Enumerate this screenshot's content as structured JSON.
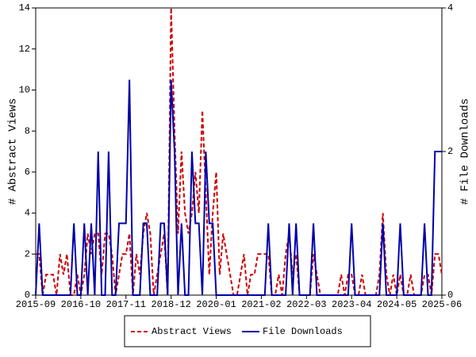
{
  "chart_data": {
    "type": "line",
    "categories": [
      "2015-09",
      null,
      null,
      null,
      null,
      null,
      null,
      null,
      null,
      null,
      null,
      null,
      null,
      "2016-10",
      null,
      null,
      null,
      null,
      null,
      null,
      null,
      null,
      null,
      null,
      null,
      null,
      "2017-11",
      null,
      null,
      null,
      null,
      null,
      null,
      null,
      null,
      null,
      null,
      null,
      null,
      "2018-12",
      null,
      null,
      null,
      null,
      null,
      null,
      null,
      null,
      null,
      null,
      null,
      null,
      "2020-01",
      null,
      null,
      null,
      null,
      null,
      null,
      null,
      null,
      null,
      null,
      null,
      null,
      "2021-02",
      null,
      null,
      null,
      null,
      null,
      null,
      null,
      null,
      null,
      null,
      null,
      null,
      "2022-03",
      null,
      null,
      null,
      null,
      null,
      null,
      null,
      null,
      null,
      null,
      null,
      null,
      "2023-04",
      null,
      null,
      null,
      null,
      null,
      null,
      null,
      null,
      null,
      null,
      null,
      null,
      "2024-05",
      null,
      null,
      null,
      null,
      null,
      null,
      null,
      null,
      null,
      null,
      null,
      null,
      "2025-06"
    ],
    "series": [
      {
        "name": "Abstract Views",
        "color": "#cc0000",
        "dashed": true,
        "values": [
          2,
          2,
          0,
          1,
          1,
          1,
          0,
          2,
          1,
          2,
          0,
          0,
          1,
          0,
          1,
          3,
          2,
          3,
          3,
          1,
          3,
          3,
          2,
          0,
          1,
          2,
          2,
          3,
          0,
          2,
          1,
          3,
          4,
          3,
          0,
          1,
          2,
          3,
          0,
          14,
          8,
          3,
          7,
          4,
          3,
          4,
          6,
          4,
          9,
          5,
          1,
          4,
          6,
          1,
          3,
          2,
          1,
          0,
          0,
          1,
          2,
          0,
          1,
          1,
          2,
          2,
          2,
          2,
          0,
          0,
          1,
          0,
          2,
          3,
          1,
          2,
          0,
          0,
          0,
          0,
          2,
          1,
          0,
          0,
          0,
          0,
          0,
          0,
          1,
          0,
          1,
          1,
          0,
          0,
          1,
          0,
          0,
          0,
          0,
          1,
          4,
          1,
          0,
          1,
          0,
          1,
          0,
          0,
          1,
          0,
          0,
          0,
          1,
          1,
          0,
          2,
          2,
          1
        ]
      },
      {
        "name": "File Downloads",
        "color": "#0000aa",
        "axis": "y2",
        "values": [
          0,
          1,
          0,
          0,
          0,
          0,
          0,
          0,
          0,
          0,
          0,
          1,
          0,
          0,
          1,
          0,
          1,
          0,
          2,
          0,
          0,
          2,
          0,
          0,
          1,
          1,
          1,
          3,
          0,
          0,
          0,
          1,
          1,
          0,
          0,
          0,
          1,
          1,
          0,
          3,
          2,
          0,
          1,
          0,
          0,
          2,
          1,
          1,
          0,
          2,
          1,
          1,
          0,
          0,
          0,
          0,
          0,
          0,
          0,
          0,
          0,
          0,
          0,
          0,
          0,
          0,
          0,
          1,
          0,
          0,
          0,
          0,
          0,
          1,
          0,
          1,
          0,
          0,
          0,
          0,
          1,
          0,
          0,
          0,
          0,
          0,
          0,
          0,
          0,
          0,
          0,
          1,
          0,
          0,
          0,
          0,
          0,
          0,
          0,
          0,
          1,
          0,
          0,
          0,
          0,
          1,
          0,
          0,
          0,
          0,
          0,
          0,
          1,
          0,
          0,
          2,
          2,
          2
        ]
      }
    ],
    "ylabel": "# Abstract Views",
    "y2label": "# File Downloads",
    "ylim": [
      0,
      14
    ],
    "yticks": [
      0,
      2,
      4,
      6,
      8,
      10,
      12,
      14
    ],
    "y2lim": [
      0,
      4
    ],
    "y2ticks": [
      0,
      2,
      4
    ],
    "legend": "bottom"
  }
}
